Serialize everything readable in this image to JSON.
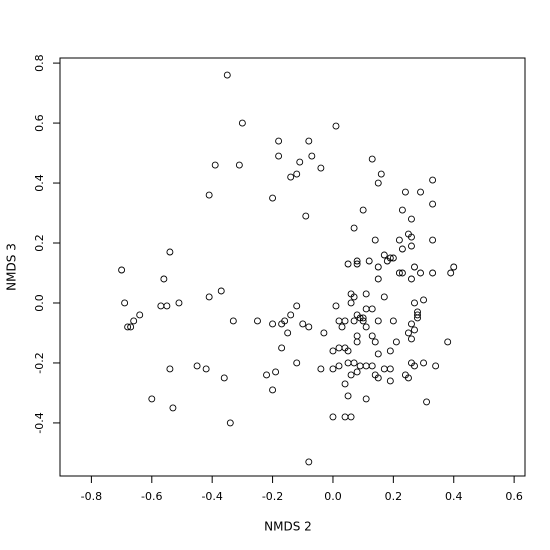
{
  "chart_data": {
    "type": "scatter",
    "x_label": "NMDS 2",
    "y_label": "NMDS 3",
    "xlim": [
      -0.904,
      0.636
    ],
    "ylim": [
      -0.577,
      0.817
    ],
    "xticks": [
      -0.8,
      -0.6,
      -0.4,
      -0.2,
      {
        "value": 0,
        "label": "0.0"
      },
      0.2,
      0.4,
      0.6
    ],
    "yticks": [
      -0.4,
      -0.2,
      {
        "value": 0,
        "label": "0.0"
      },
      0.2,
      0.4,
      0.6,
      0.8
    ],
    "color": "#000000",
    "x": [
      -0.35,
      -0.3,
      0.01,
      -0.18,
      -0.08,
      -0.39,
      -0.31,
      -0.18,
      -0.11,
      -0.07,
      -0.04,
      -0.14,
      -0.12,
      0.13,
      0.16,
      0.15,
      0.33,
      -0.41,
      -0.2,
      0.24,
      0.29,
      0.33,
      -0.09,
      0.1,
      0.23,
      0.26,
      0.07,
      0.14,
      0.25,
      0.26,
      0.33,
      0.22,
      0.23,
      0.26,
      0.17,
      0.19,
      0.2,
      -0.54,
      0.08,
      0.12,
      0.15,
      0.18,
      0.05,
      0.08,
      0.22,
      0.23,
      0.27,
      0.29,
      0.33,
      0.4,
      0.39,
      0.26,
      -0.7,
      -0.56,
      0.15,
      0.06,
      0.07,
      0.11,
      0.17,
      -0.37,
      -0.41,
      -0.69,
      -0.57,
      -0.55,
      -0.51,
      0.06,
      0.27,
      0.3,
      0.28,
      -0.64,
      -0.12,
      0.01,
      0.11,
      0.13,
      0.08,
      0.09,
      0.1,
      0.28,
      0.28,
      -0.66,
      -0.67,
      -0.68,
      -0.25,
      -0.33,
      -0.2,
      -0.17,
      -0.16,
      -0.14,
      -0.1,
      -0.08,
      0.02,
      0.04,
      0.07,
      0.1,
      0.15,
      0.2,
      0.26,
      0.27,
      -0.03,
      0.03,
      0.11,
      -0.15,
      0.13,
      0.25,
      0.08,
      0.08,
      0.14,
      0.21,
      0.26,
      0.38,
      0.02,
      0.04,
      -0.17,
      0.0,
      0.05,
      0.15,
      0.19,
      0.07,
      0.05,
      0.02,
      -0.12,
      0.09,
      0.11,
      0.26,
      0.27,
      0.13,
      0.3,
      0.34,
      0.17,
      -0.04,
      -0.45,
      -0.42,
      -0.54,
      0.0,
      0.19,
      -0.22,
      -0.19,
      0.06,
      0.08,
      0.14,
      0.24,
      -0.36,
      0.15,
      0.25,
      0.04,
      0.19,
      -0.2,
      0.05,
      -0.6,
      0.11,
      0.31,
      -0.53,
      0.0,
      0.04,
      0.06,
      -0.34,
      -0.08
    ],
    "values": [
      0.76,
      0.6,
      0.59,
      0.54,
      0.54,
      0.46,
      0.46,
      0.49,
      0.47,
      0.49,
      0.45,
      0.42,
      0.43,
      0.48,
      0.43,
      0.4,
      0.41,
      0.36,
      0.35,
      0.37,
      0.37,
      0.33,
      0.29,
      0.31,
      0.31,
      0.28,
      0.25,
      0.21,
      0.23,
      0.22,
      0.21,
      0.21,
      0.18,
      0.19,
      0.16,
      0.15,
      0.15,
      0.17,
      0.14,
      0.14,
      0.12,
      0.14,
      0.13,
      0.13,
      0.1,
      0.1,
      0.12,
      0.1,
      0.1,
      0.12,
      0.1,
      0.08,
      0.11,
      0.08,
      0.08,
      0.03,
      0.02,
      0.03,
      0.02,
      0.04,
      0.02,
      0.0,
      -0.01,
      -0.01,
      0.0,
      0.0,
      0.0,
      0.01,
      -0.03,
      -0.04,
      -0.01,
      -0.01,
      -0.02,
      -0.02,
      -0.04,
      -0.05,
      -0.05,
      -0.04,
      -0.05,
      -0.06,
      -0.08,
      -0.08,
      -0.06,
      -0.06,
      -0.07,
      -0.07,
      -0.06,
      -0.04,
      -0.07,
      -0.08,
      -0.06,
      -0.06,
      -0.06,
      -0.06,
      -0.06,
      -0.06,
      -0.07,
      -0.09,
      -0.1,
      -0.08,
      -0.08,
      -0.1,
      -0.11,
      -0.1,
      -0.11,
      -0.13,
      -0.13,
      -0.13,
      -0.12,
      -0.13,
      -0.15,
      -0.15,
      -0.15,
      -0.16,
      -0.16,
      -0.17,
      -0.16,
      -0.2,
      -0.2,
      -0.21,
      -0.2,
      -0.21,
      -0.21,
      -0.2,
      -0.21,
      -0.21,
      -0.2,
      -0.21,
      -0.22,
      -0.22,
      -0.21,
      -0.22,
      -0.22,
      -0.22,
      -0.22,
      -0.24,
      -0.23,
      -0.24,
      -0.23,
      -0.24,
      -0.24,
      -0.25,
      -0.25,
      -0.25,
      -0.27,
      -0.26,
      -0.29,
      -0.31,
      -0.32,
      -0.32,
      -0.33,
      -0.35,
      -0.38,
      -0.38,
      -0.38,
      -0.4,
      -0.53
    ]
  }
}
